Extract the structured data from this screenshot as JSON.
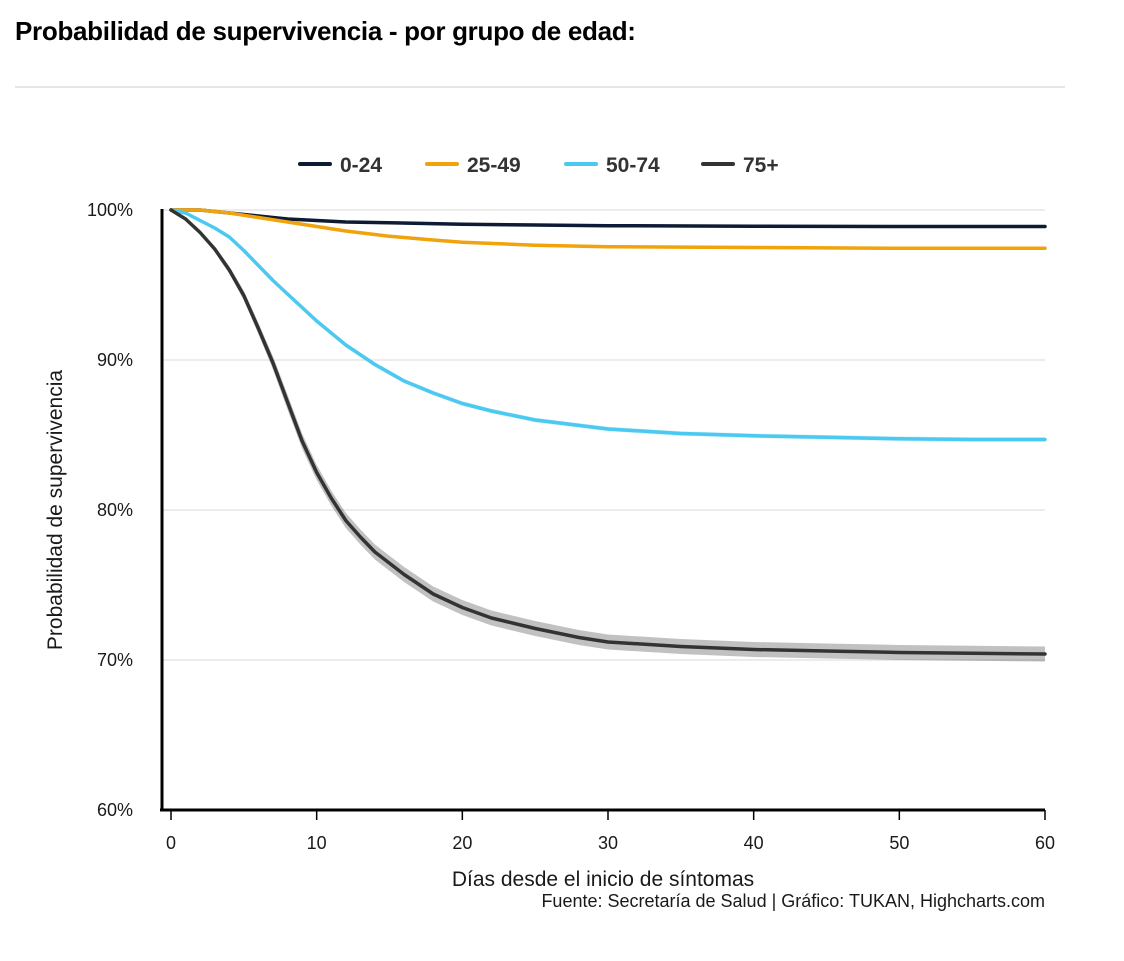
{
  "header": {
    "title": "Probabilidad de supervivencia - por grupo de edad:"
  },
  "credit": "Fuente: Secretaría de Salud | Gráfico: TUKAN, Highcharts.com",
  "chart_data": {
    "type": "line",
    "title": "Probabilidad de supervivencia - por grupo de edad:",
    "xlabel": "Días desde el inicio de síntomas",
    "ylabel": "Probabilidad de supervivencia",
    "xlim": [
      0,
      60
    ],
    "ylim": [
      60,
      100
    ],
    "x_ticks": [
      0,
      10,
      20,
      30,
      40,
      50,
      60
    ],
    "x_tick_labels": [
      "0",
      "10",
      "20",
      "30",
      "40",
      "50",
      "60"
    ],
    "y_ticks": [
      60,
      70,
      80,
      90,
      100
    ],
    "y_tick_labels": [
      "60%",
      "70%",
      "80%",
      "90%",
      "100%"
    ],
    "grid": true,
    "legend": "top-center",
    "series": [
      {
        "name": "0-24",
        "color": "#0d1b35",
        "band": 0.1,
        "points": [
          [
            0,
            100
          ],
          [
            2,
            100
          ],
          [
            4,
            99.8
          ],
          [
            6,
            99.6
          ],
          [
            8,
            99.4
          ],
          [
            10,
            99.3
          ],
          [
            12,
            99.2
          ],
          [
            15,
            99.15
          ],
          [
            20,
            99.05
          ],
          [
            25,
            99.0
          ],
          [
            30,
            98.95
          ],
          [
            40,
            98.92
          ],
          [
            50,
            98.9
          ],
          [
            60,
            98.9
          ]
        ]
      },
      {
        "name": "25-49",
        "color": "#f0a30a",
        "band": 0.1,
        "points": [
          [
            0,
            100
          ],
          [
            2,
            100
          ],
          [
            4,
            99.8
          ],
          [
            6,
            99.5
          ],
          [
            8,
            99.2
          ],
          [
            10,
            98.9
          ],
          [
            12,
            98.6
          ],
          [
            15,
            98.25
          ],
          [
            18,
            98.0
          ],
          [
            20,
            97.85
          ],
          [
            25,
            97.65
          ],
          [
            30,
            97.55
          ],
          [
            40,
            97.5
          ],
          [
            50,
            97.45
          ],
          [
            60,
            97.45
          ]
        ]
      },
      {
        "name": "50-74",
        "color": "#4cc9f0",
        "band": 0.15,
        "points": [
          [
            0,
            100
          ],
          [
            1,
            99.8
          ],
          [
            2,
            99.3
          ],
          [
            3,
            98.8
          ],
          [
            4,
            98.2
          ],
          [
            5,
            97.3
          ],
          [
            6,
            96.3
          ],
          [
            7,
            95.3
          ],
          [
            8,
            94.4
          ],
          [
            10,
            92.6
          ],
          [
            12,
            91.0
          ],
          [
            14,
            89.7
          ],
          [
            16,
            88.6
          ],
          [
            18,
            87.8
          ],
          [
            20,
            87.1
          ],
          [
            22,
            86.6
          ],
          [
            25,
            86.0
          ],
          [
            30,
            85.4
          ],
          [
            35,
            85.1
          ],
          [
            40,
            84.95
          ],
          [
            45,
            84.85
          ],
          [
            50,
            84.75
          ],
          [
            55,
            84.7
          ],
          [
            60,
            84.7
          ]
        ]
      },
      {
        "name": "75+",
        "color": "#333333",
        "band": 0.5,
        "points": [
          [
            0,
            100
          ],
          [
            1,
            99.4
          ],
          [
            2,
            98.5
          ],
          [
            3,
            97.4
          ],
          [
            4,
            96.0
          ],
          [
            5,
            94.3
          ],
          [
            6,
            92.1
          ],
          [
            7,
            89.8
          ],
          [
            8,
            87.2
          ],
          [
            9,
            84.6
          ],
          [
            10,
            82.5
          ],
          [
            11,
            80.8
          ],
          [
            12,
            79.3
          ],
          [
            13,
            78.2
          ],
          [
            14,
            77.2
          ],
          [
            16,
            75.7
          ],
          [
            18,
            74.4
          ],
          [
            20,
            73.5
          ],
          [
            22,
            72.8
          ],
          [
            25,
            72.1
          ],
          [
            28,
            71.5
          ],
          [
            30,
            71.2
          ],
          [
            35,
            70.9
          ],
          [
            40,
            70.7
          ],
          [
            45,
            70.6
          ],
          [
            50,
            70.5
          ],
          [
            55,
            70.45
          ],
          [
            60,
            70.4
          ]
        ]
      }
    ]
  }
}
